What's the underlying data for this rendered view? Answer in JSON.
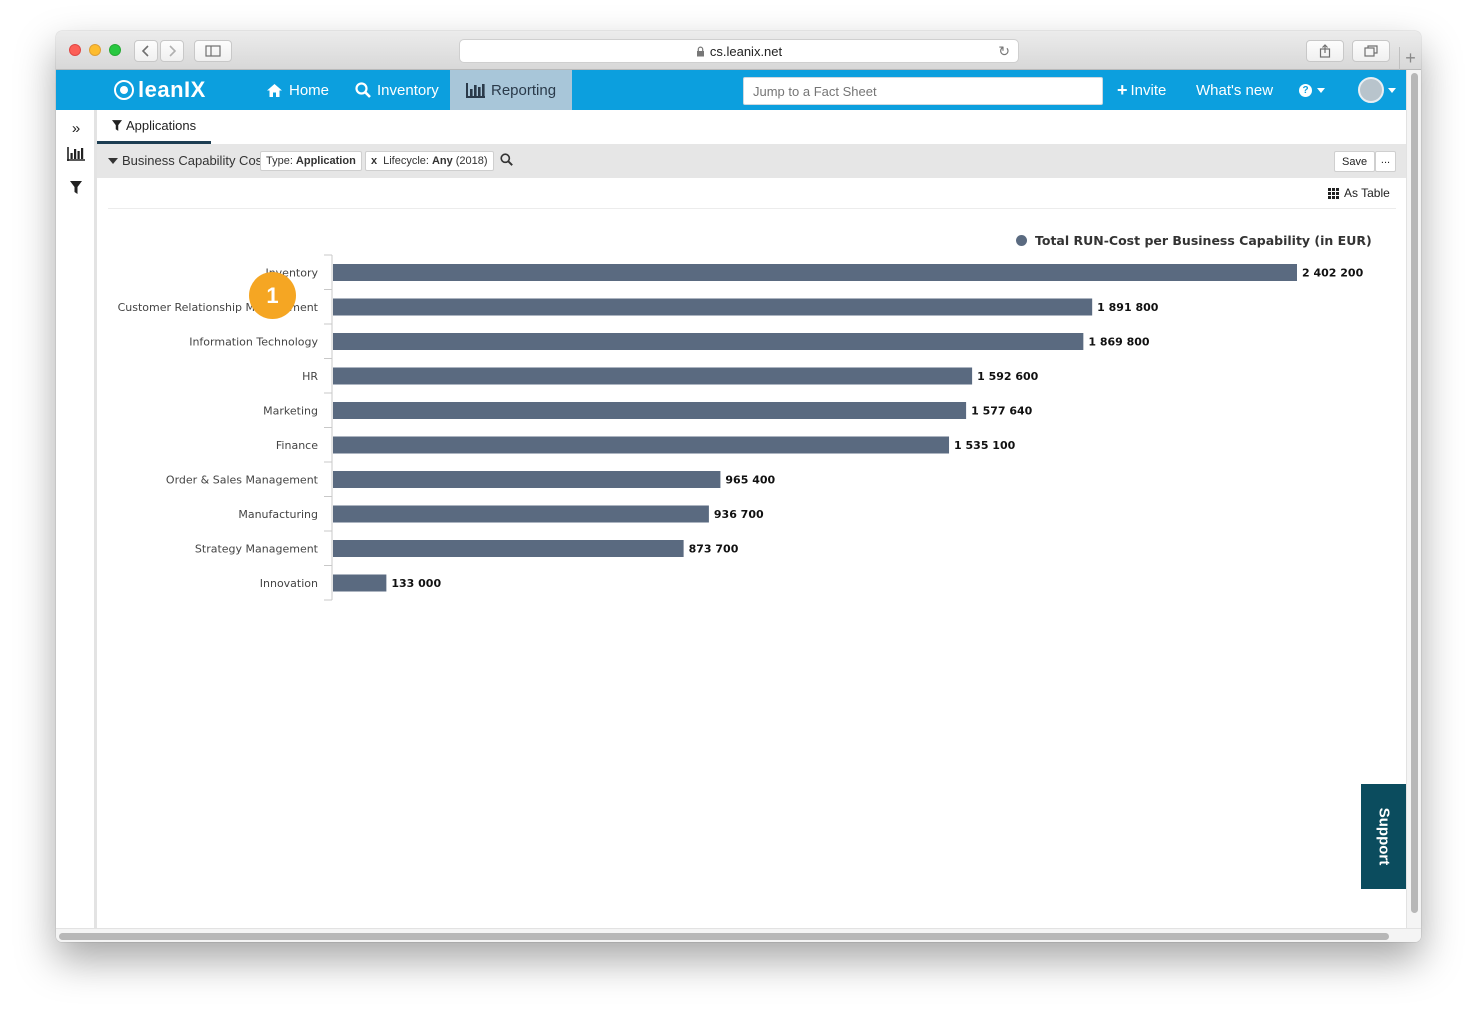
{
  "browser": {
    "url": "cs.leanix.net"
  },
  "nav": {
    "logo": "leanIX",
    "home": "Home",
    "inventory": "Inventory",
    "reporting": "Reporting",
    "jump_placeholder": "Jump to a Fact Sheet",
    "invite": "Invite",
    "whats_new": "What's new",
    "help": "?"
  },
  "subtab": {
    "label": "Applications"
  },
  "filterbar": {
    "report_name": "Business Capability Cost",
    "type_label": "Type:",
    "type_value": "Application",
    "lifecycle_label": "Lifecycle:",
    "lifecycle_value": "Any",
    "lifecycle_year": "(2018)",
    "save": "Save",
    "more": "..."
  },
  "view_toggle": "As Table",
  "badge": "1",
  "support": "Support",
  "chart_data": {
    "type": "bar",
    "orientation": "horizontal",
    "categories": [
      "Inventory",
      "Customer Relationship Management",
      "Information Technology",
      "HR",
      "Marketing",
      "Finance",
      "Order & Sales Management",
      "Manufacturing",
      "Strategy Management",
      "Innovation"
    ],
    "series": [
      {
        "name": "Total RUN-Cost per Business Capability (in EUR)",
        "values": [
          2402200,
          1891800,
          1869800,
          1592600,
          1577640,
          1535100,
          965400,
          936700,
          873700,
          133000
        ],
        "labels": [
          "2 402 200",
          "1 891 800",
          "1 869 800",
          "1 592 600",
          "1 577 640",
          "1 535 100",
          "965 400",
          "936 700",
          "873 700",
          "133 000"
        ]
      }
    ],
    "xlim": [
      0,
      2402200
    ],
    "grid": false,
    "legend": "top-right",
    "bar_color": "#5a6a80"
  }
}
